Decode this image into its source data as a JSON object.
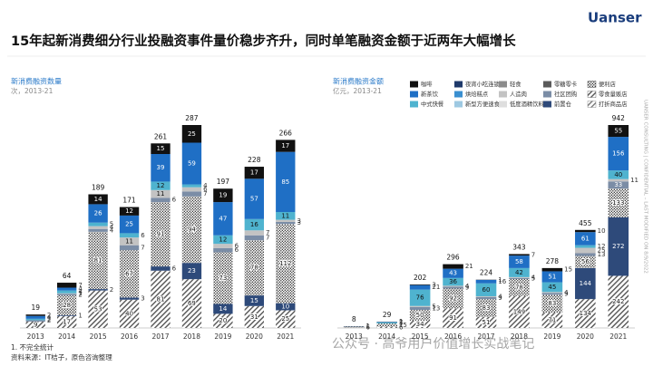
{
  "header": {
    "title": "15年起新消费细分行业投融资事件量价稳步齐升，同时单笔融资金额于近两年大幅增长",
    "logo": "Uanser"
  },
  "legend": [
    {
      "name": "咖啡",
      "color": "#111111"
    },
    {
      "name": "夜宵小吃连锁",
      "color": "#1f3a6b"
    },
    {
      "name": "轻食",
      "color": "#8c8c8c"
    },
    {
      "name": "零糖零卡",
      "color": "#5a5a5a"
    },
    {
      "name": "便利店",
      "color": "#333333",
      "pattern": "dots"
    },
    {
      "name": "新茶饮",
      "color": "#1f6fc5"
    },
    {
      "name": "烘焙糕点",
      "color": "#3a8fd0"
    },
    {
      "name": "人造肉",
      "color": "#c3c3c3"
    },
    {
      "name": "社区团购",
      "color": "#7b8da6"
    },
    {
      "name": "零食量贩店",
      "color": "#555555",
      "pattern": "diag"
    },
    {
      "name": "中式快餐",
      "color": "#4fb3cf"
    },
    {
      "name": "新型方便速食",
      "color": "#9ec9e2"
    },
    {
      "name": "低度酒精饮料",
      "color": "#dedede"
    },
    {
      "name": "前置仓",
      "color": "#2e4a7a"
    },
    {
      "name": "打折商品店",
      "color": "#777777",
      "pattern": "diag"
    }
  ],
  "chart_data": [
    {
      "type": "bar",
      "stacked": true,
      "title": "新消费融资数量",
      "subtitle": "次，2013-21",
      "categories": [
        "2013",
        "2014",
        "2015",
        "2016",
        "2017",
        "2018",
        "2019",
        "2020",
        "2021"
      ],
      "totals": [
        19,
        64,
        189,
        171,
        261,
        287,
        197,
        228,
        266
      ],
      "series": [
        {
          "values": [
            2,
            7,
            14,
            12,
            15,
            25,
            19,
            17,
            17
          ]
        },
        {
          "values": [
            0,
            0,
            0,
            0,
            0,
            0,
            0,
            0,
            0
          ]
        },
        {
          "values": [
            0,
            0,
            0,
            0,
            0,
            0,
            0,
            0,
            0
          ]
        },
        {
          "values": [
            0,
            0,
            0,
            0,
            0,
            0,
            0,
            0,
            0
          ]
        },
        {
          "values": [
            0,
            28,
            81,
            67,
            91,
            94,
            73,
            78,
            112
          ]
        },
        {
          "values": [
            4,
            4,
            26,
            25,
            39,
            59,
            47,
            57,
            85
          ]
        },
        {
          "values": [
            0,
            0,
            0,
            0,
            0,
            0,
            0,
            0,
            0
          ]
        },
        {
          "values": [
            0,
            1,
            4,
            11,
            11,
            6,
            6,
            7,
            3
          ]
        },
        {
          "values": [
            2,
            2,
            4,
            7,
            6,
            7,
            6,
            7,
            3
          ]
        },
        {
          "values": [
            9,
            17,
            53,
            40,
            81,
            69,
            20,
            31,
            25
          ]
        },
        {
          "values": [
            2,
            4,
            5,
            6,
            12,
            4,
            12,
            16,
            11
          ]
        },
        {
          "values": [
            0,
            0,
            0,
            0,
            0,
            0,
            0,
            0,
            0
          ]
        },
        {
          "values": [
            0,
            0,
            0,
            0,
            0,
            0,
            0,
            0,
            0
          ]
        },
        {
          "values": [
            0,
            1,
            2,
            3,
            6,
            23,
            14,
            15,
            10
          ]
        },
        {
          "values": [
            0,
            0,
            0,
            0,
            0,
            0,
            0,
            0,
            0
          ]
        }
      ]
    },
    {
      "type": "bar",
      "stacked": true,
      "title": "新消费融资金额",
      "subtitle": "亿元，2013-21",
      "categories": [
        "2013",
        "2014",
        "2015",
        "2016",
        "2017",
        "2018",
        "2019",
        "2020",
        "2021"
      ],
      "totals": [
        8,
        29,
        202,
        296,
        224,
        343,
        278,
        455,
        942
      ],
      "series": [
        {
          "values": [
            1,
            1,
            3,
            21,
            1,
            7,
            15,
            10,
            55
          ]
        },
        {
          "values": [
            0,
            0,
            0,
            0,
            0,
            0,
            0,
            0,
            0
          ]
        },
        {
          "values": [
            0,
            0,
            0,
            0,
            0,
            0,
            0,
            0,
            0
          ]
        },
        {
          "values": [
            0,
            0,
            0,
            0,
            0,
            0,
            0,
            0,
            0
          ]
        },
        {
          "values": [
            6,
            15,
            50,
            92,
            83,
            78,
            83,
            56,
            133
          ]
        },
        {
          "values": [
            1,
            2,
            21,
            43,
            16,
            58,
            51,
            61,
            156
          ]
        },
        {
          "values": [
            0,
            0,
            0,
            0,
            0,
            0,
            0,
            0,
            0
          ]
        },
        {
          "values": [
            0,
            0,
            5,
            4,
            4,
            4,
            4,
            25,
            11
          ]
        },
        {
          "values": [
            0,
            0,
            13,
            9,
            9,
            5,
            9,
            13,
            33
          ]
        },
        {
          "values": [
            0,
            6,
            34,
            91,
            51,
            149,
            71,
            134,
            242
          ]
        },
        {
          "values": [
            0,
            5,
            76,
            36,
            60,
            42,
            45,
            12,
            40
          ]
        },
        {
          "values": [
            0,
            0,
            0,
            0,
            0,
            0,
            0,
            0,
            0
          ]
        },
        {
          "values": [
            0,
            0,
            0,
            0,
            0,
            0,
            0,
            0,
            0
          ]
        },
        {
          "values": [
            0,
            0,
            0,
            0,
            0,
            0,
            0,
            144,
            272
          ]
        },
        {
          "values": [
            0,
            0,
            0,
            0,
            0,
            0,
            0,
            0,
            0
          ]
        }
      ]
    }
  ],
  "footnotes": [
    "1. 不完全统计",
    "资料来源：IT桔子，原色咨询整理"
  ],
  "side_text": "UANSER CONSULTING | CONFIDENTIAL – LAST MODIFIED ON 8/9/2022",
  "watermark": "公众号 · 高爷用户价值增长实战笔记"
}
